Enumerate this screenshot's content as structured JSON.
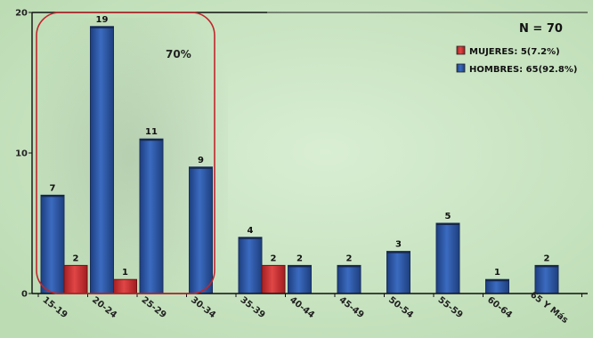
{
  "colors": {
    "background": "#c9e4c2",
    "mujeres": "#d02f2f",
    "hombres": "#2f5aa8",
    "highlight": "#c0262c"
  },
  "annotations": {
    "n_total": "N = 70",
    "highlight_percent": "70%"
  },
  "legend": {
    "mujeres": "MUJERES: 5(7.2%)",
    "hombres": "HOMBRES: 65(92.8%)"
  },
  "chart_data": {
    "type": "bar",
    "categories": [
      "15-19",
      "20-24",
      "25-29",
      "30-34",
      "35-39",
      "40-44",
      "45-49",
      "50-54",
      "55-59",
      "60-64",
      "65 Y Más"
    ],
    "series": [
      {
        "name": "HOMBRES",
        "values": [
          7,
          19,
          11,
          9,
          4,
          2,
          2,
          3,
          5,
          1,
          2
        ]
      },
      {
        "name": "MUJERES",
        "values": [
          2,
          1,
          0,
          0,
          2,
          0,
          0,
          0,
          0,
          0,
          0
        ]
      }
    ],
    "y_ticks": [
      "0",
      "10",
      "20"
    ],
    "ylim": [
      0,
      20
    ],
    "legend_position": "top-right",
    "grid": false
  }
}
